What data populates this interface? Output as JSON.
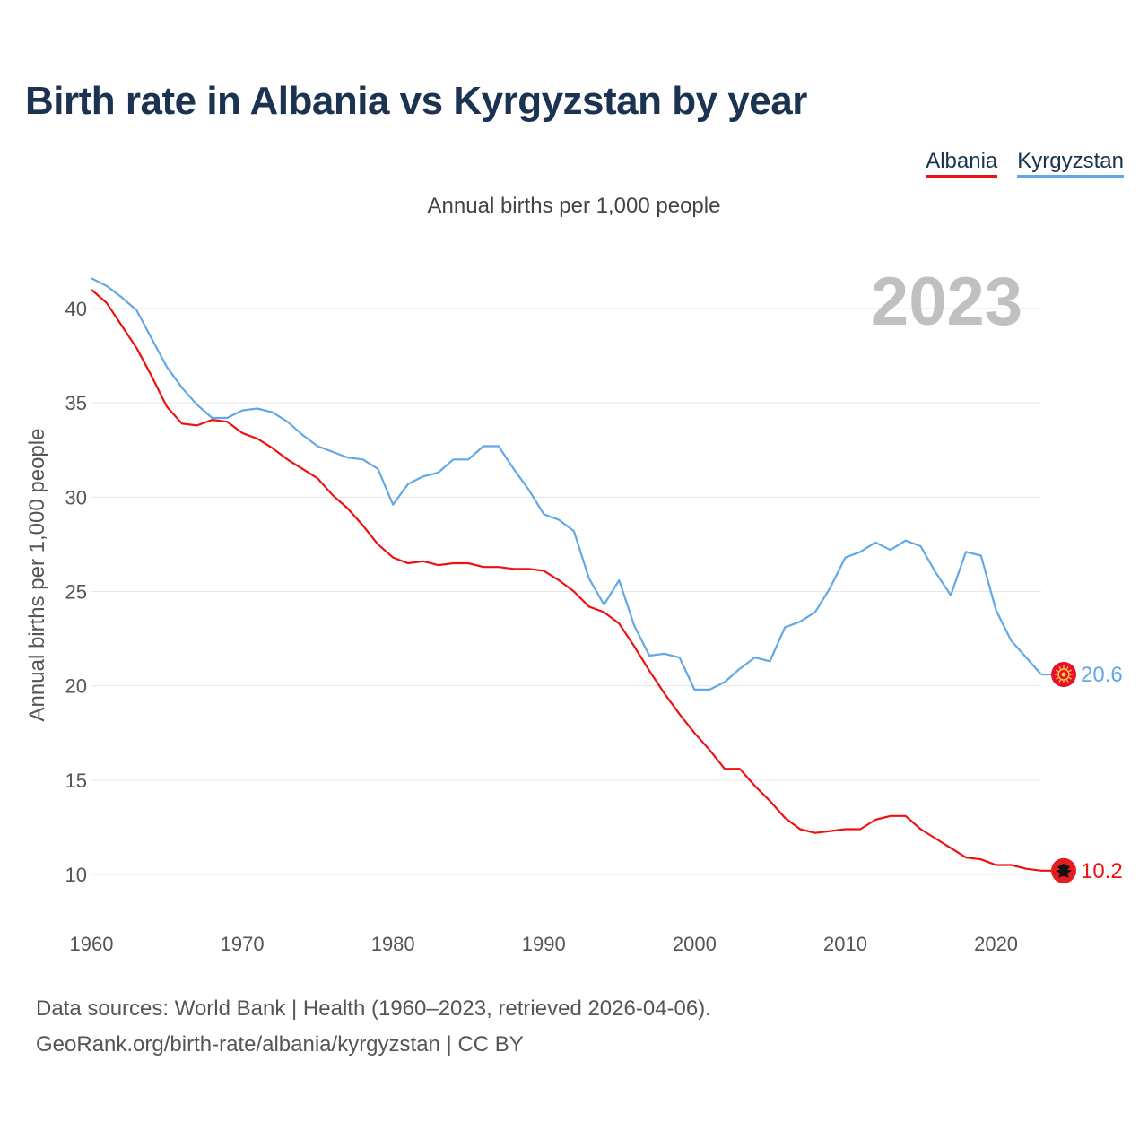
{
  "title": "Birth rate in Albania vs Kyrgyzstan by year",
  "subtitle": "Annual births per 1,000 people",
  "legend": {
    "albania": "Albania",
    "kyrgyzstan": "Kyrgyzstan"
  },
  "footer": {
    "line1": "Data sources: World Bank | Health (1960–2023, retrieved 2026-04-06).",
    "line2": "GeoRank.org/birth-rate/albania/kyrgyzstan | CC BY"
  },
  "chart_data": {
    "type": "line",
    "title": "Birth rate in Albania vs Kyrgyzstan by year",
    "subtitle": "Annual births per 1,000 people",
    "xlabel": "",
    "ylabel": "Annual births per 1,000 people",
    "xlim": [
      1960,
      2023
    ],
    "ylim": [
      10,
      40
    ],
    "x_ticks": [
      1960,
      1970,
      1980,
      1990,
      2000,
      2010,
      2020
    ],
    "y_ticks": [
      10,
      15,
      20,
      25,
      30,
      35,
      40
    ],
    "grid": true,
    "year_label": "2023",
    "x": [
      1960,
      1961,
      1962,
      1963,
      1964,
      1965,
      1966,
      1967,
      1968,
      1969,
      1970,
      1971,
      1972,
      1973,
      1974,
      1975,
      1976,
      1977,
      1978,
      1979,
      1980,
      1981,
      1982,
      1983,
      1984,
      1985,
      1986,
      1987,
      1988,
      1989,
      1990,
      1991,
      1992,
      1993,
      1994,
      1995,
      1996,
      1997,
      1998,
      1999,
      2000,
      2001,
      2002,
      2003,
      2004,
      2005,
      2006,
      2007,
      2008,
      2009,
      2010,
      2011,
      2012,
      2013,
      2014,
      2015,
      2016,
      2017,
      2018,
      2019,
      2020,
      2021,
      2022,
      2023
    ],
    "series": [
      {
        "name": "Albania",
        "color": "#ee1111",
        "end_label": "10.2",
        "values": [
          41.0,
          40.3,
          39.1,
          37.9,
          36.4,
          34.8,
          33.9,
          33.8,
          34.1,
          34.0,
          33.4,
          33.1,
          32.6,
          32.0,
          31.5,
          31.0,
          30.1,
          29.4,
          28.5,
          27.5,
          26.8,
          26.5,
          26.6,
          26.4,
          26.5,
          26.5,
          26.3,
          26.3,
          26.2,
          26.2,
          26.1,
          25.6,
          25.0,
          24.2,
          23.9,
          23.3,
          22.1,
          20.8,
          19.6,
          18.5,
          17.5,
          16.6,
          15.6,
          15.6,
          14.7,
          13.9,
          13.0,
          12.4,
          12.2,
          12.3,
          12.4,
          12.4,
          12.9,
          13.1,
          13.1,
          12.4,
          11.9,
          11.4,
          10.9,
          10.8,
          10.5,
          10.5,
          10.3,
          10.2
        ]
      },
      {
        "name": "Kyrgyzstan",
        "color": "#62a8e6",
        "end_label": "20.6",
        "values": [
          41.6,
          41.2,
          40.6,
          39.9,
          38.4,
          36.9,
          35.8,
          34.9,
          34.2,
          34.2,
          34.6,
          34.7,
          34.5,
          34.0,
          33.3,
          32.7,
          32.4,
          32.1,
          32.0,
          31.5,
          29.6,
          30.7,
          31.1,
          31.3,
          32.0,
          32.0,
          32.7,
          32.7,
          31.5,
          30.4,
          29.1,
          28.8,
          28.2,
          25.7,
          24.3,
          25.6,
          23.2,
          21.6,
          21.7,
          21.5,
          19.8,
          19.8,
          20.2,
          20.9,
          21.5,
          21.3,
          23.1,
          23.4,
          23.9,
          25.2,
          26.8,
          27.1,
          27.6,
          27.2,
          27.7,
          27.4,
          26.0,
          24.8,
          27.1,
          26.9,
          24.0,
          22.4,
          21.5,
          20.6
        ]
      }
    ]
  }
}
